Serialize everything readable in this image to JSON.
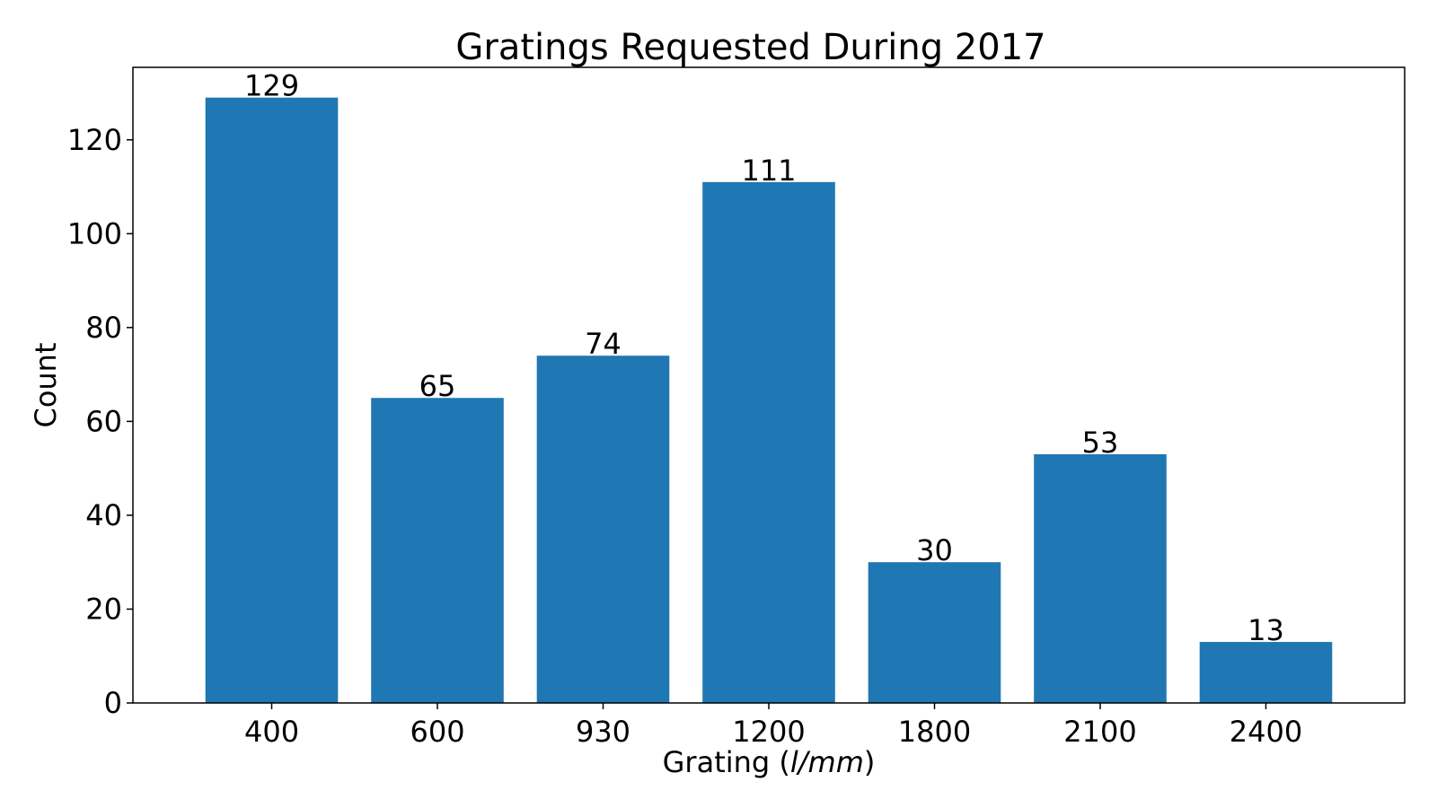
{
  "chart_data": {
    "type": "bar",
    "title": "Gratings Requested During 2017",
    "xlabel_prefix": "Grating (",
    "xlabel_unit": "l/mm",
    "xlabel_suffix": ")",
    "ylabel": "Count",
    "categories": [
      "400",
      "600",
      "930",
      "1200",
      "1800",
      "2100",
      "2400"
    ],
    "values": [
      129,
      65,
      74,
      111,
      30,
      53,
      13
    ],
    "value_labels": [
      "129",
      "65",
      "74",
      "111",
      "30",
      "53",
      "13"
    ],
    "yticks": [
      0,
      20,
      40,
      60,
      80,
      100,
      120
    ],
    "ytick_labels": [
      "0",
      "20",
      "40",
      "60",
      "80",
      "100",
      "120"
    ],
    "ylim": [
      0,
      135.45
    ],
    "grid": false,
    "bar_color": "#1f77b4"
  }
}
